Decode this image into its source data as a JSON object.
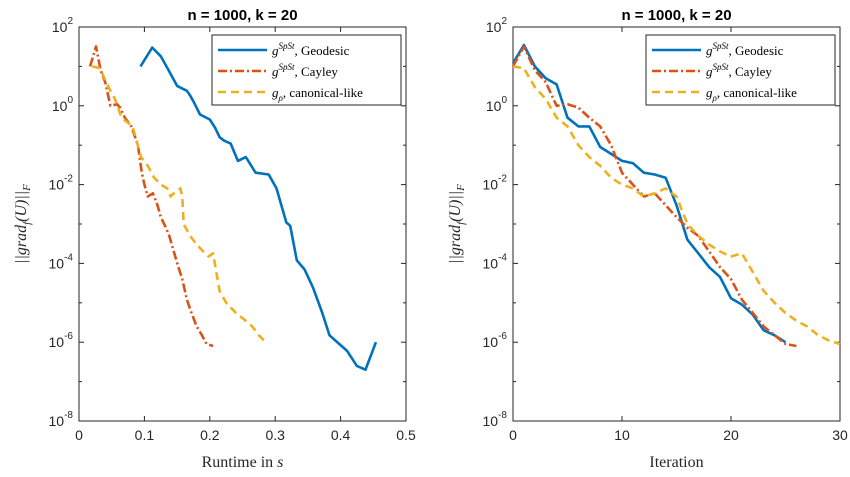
{
  "chart_data": [
    {
      "type": "line",
      "title": "n = 1000, k = 20",
      "xlabel": "Runtime in s",
      "ylabel": "||grad_f(U)||_F",
      "xlim": [
        0,
        0.5
      ],
      "ylim": [
        1e-08,
        100
      ],
      "yscale": "log",
      "xticks": [
        "0",
        "0.1",
        "0.2",
        "0.3",
        "0.4",
        "0.5"
      ],
      "legend_position": "top-right",
      "series": [
        {
          "name": "g^SpSt, Geodesic",
          "color": "#0072BD",
          "style": "solid",
          "x": [
            0.094,
            0.112,
            0.125,
            0.137,
            0.15,
            0.165,
            0.17,
            0.175,
            0.185,
            0.2,
            0.208,
            0.215,
            0.222,
            0.232,
            0.243,
            0.255,
            0.27,
            0.29,
            0.302,
            0.317,
            0.323,
            0.333,
            0.345,
            0.358,
            0.372,
            0.383,
            0.398,
            0.41,
            0.425,
            0.438,
            0.454
          ],
          "y": [
            10,
            30,
            18,
            8,
            3.2,
            2.4,
            1.8,
            1.3,
            0.6,
            0.45,
            0.28,
            0.16,
            0.13,
            0.11,
            0.04,
            0.05,
            0.02,
            0.018,
            0.008,
            0.0011,
            0.0009,
            0.00012,
            7e-05,
            2.4e-05,
            5.5e-06,
            1.5e-06,
            9e-07,
            6e-07,
            2.5e-07,
            2e-07,
            1e-06
          ]
        },
        {
          "name": "g^SpSt, Cayley",
          "color": "#D95319",
          "style": "dashdot",
          "x": [
            0.017,
            0.026,
            0.033,
            0.04,
            0.048,
            0.058,
            0.063,
            0.07,
            0.08,
            0.09,
            0.096,
            0.1,
            0.105,
            0.113,
            0.12,
            0.125,
            0.133,
            0.138,
            0.145,
            0.152,
            0.158,
            0.165,
            0.172,
            0.18,
            0.188,
            0.195,
            0.205
          ],
          "y": [
            10,
            32,
            8,
            4,
            1,
            1.1,
            0.9,
            0.5,
            0.3,
            0.1,
            0.02,
            0.01,
            0.005,
            0.006,
            0.003,
            0.0015,
            0.0008,
            0.0005,
            0.0002,
            8e-05,
            4e-05,
            1.2e-05,
            5.5e-06,
            2.5e-06,
            1.5e-06,
            9e-07,
            8e-07
          ]
        },
        {
          "name": "g_ρ, canonical-like",
          "color": "#EDB120",
          "style": "dashed",
          "x": [
            0.02,
            0.032,
            0.045,
            0.055,
            0.065,
            0.082,
            0.095,
            0.105,
            0.115,
            0.125,
            0.135,
            0.14,
            0.145,
            0.155,
            0.158,
            0.16,
            0.17,
            0.18,
            0.19,
            0.198,
            0.205,
            0.21,
            0.215,
            0.225,
            0.24,
            0.255,
            0.265,
            0.275,
            0.288
          ],
          "y": [
            10,
            9,
            3,
            1.5,
            0.5,
            0.3,
            0.05,
            0.03,
            0.015,
            0.01,
            0.008,
            0.005,
            0.006,
            0.008,
            0.005,
            0.001,
            0.0005,
            0.0003,
            0.0002,
            0.00015,
            0.00018,
            6e-05,
            2e-05,
            1e-05,
            5.5e-06,
            3.5e-06,
            2.5e-06,
            1.5e-06,
            9e-07
          ]
        }
      ]
    },
    {
      "type": "line",
      "title": "n = 1000, k = 20",
      "xlabel": "Iteration",
      "ylabel": "||grad_f(U)||_F",
      "xlim": [
        0,
        30
      ],
      "ylim": [
        1e-08,
        100
      ],
      "yscale": "log",
      "xticks": [
        "0",
        "10",
        "20",
        "30"
      ],
      "legend_position": "top-right",
      "series": [
        {
          "name": "g^SpSt, Geodesic",
          "color": "#0072BD",
          "style": "solid",
          "x": [
            0,
            1,
            2,
            3,
            4,
            5,
            6,
            7,
            8,
            9,
            10,
            11,
            12,
            13,
            14,
            15,
            16,
            17,
            18,
            19,
            20,
            21,
            22,
            23,
            24,
            25
          ],
          "y": [
            12,
            35,
            10,
            5,
            3.5,
            0.5,
            0.3,
            0.3,
            0.09,
            0.06,
            0.04,
            0.035,
            0.02,
            0.018,
            0.015,
            0.003,
            0.0004,
            0.00018,
            8e-05,
            4.5e-05,
            1.3e-05,
            9e-06,
            5e-06,
            2e-06,
            1.5e-06,
            1e-06
          ]
        },
        {
          "name": "g^SpSt, Cayley",
          "color": "#D95319",
          "style": "dashdot",
          "x": [
            0,
            1,
            2,
            3,
            4,
            5,
            6,
            7,
            8,
            9,
            10,
            11,
            12,
            13,
            14,
            15,
            16,
            17,
            18,
            19,
            20,
            21,
            22,
            23,
            24,
            25,
            26
          ],
          "y": [
            10,
            32,
            8,
            4,
            1,
            1.1,
            0.9,
            0.5,
            0.3,
            0.1,
            0.02,
            0.01,
            0.005,
            0.006,
            0.003,
            0.0015,
            0.0008,
            0.0005,
            0.0002,
            8e-05,
            4e-05,
            1.2e-05,
            5.5e-06,
            2.5e-06,
            1.5e-06,
            9e-07,
            8e-07
          ]
        },
        {
          "name": "g_ρ, canonical-like",
          "color": "#EDB120",
          "style": "dashed",
          "x": [
            0,
            1,
            2,
            3,
            4,
            5,
            6,
            7,
            8,
            9,
            10,
            11,
            12,
            13,
            14,
            15,
            16,
            17,
            18,
            19,
            20,
            21,
            22,
            23,
            24,
            25,
            26,
            27,
            28,
            29,
            30
          ],
          "y": [
            10,
            9,
            3,
            1.5,
            0.5,
            0.3,
            0.1,
            0.05,
            0.03,
            0.015,
            0.01,
            0.008,
            0.005,
            0.006,
            0.008,
            0.005,
            0.001,
            0.0005,
            0.0003,
            0.0002,
            0.00015,
            0.00018,
            6e-05,
            2e-05,
            1e-05,
            5.5e-06,
            3.5e-06,
            2.5e-06,
            1.5e-06,
            1.1e-06,
            9e-07
          ]
        }
      ]
    }
  ]
}
